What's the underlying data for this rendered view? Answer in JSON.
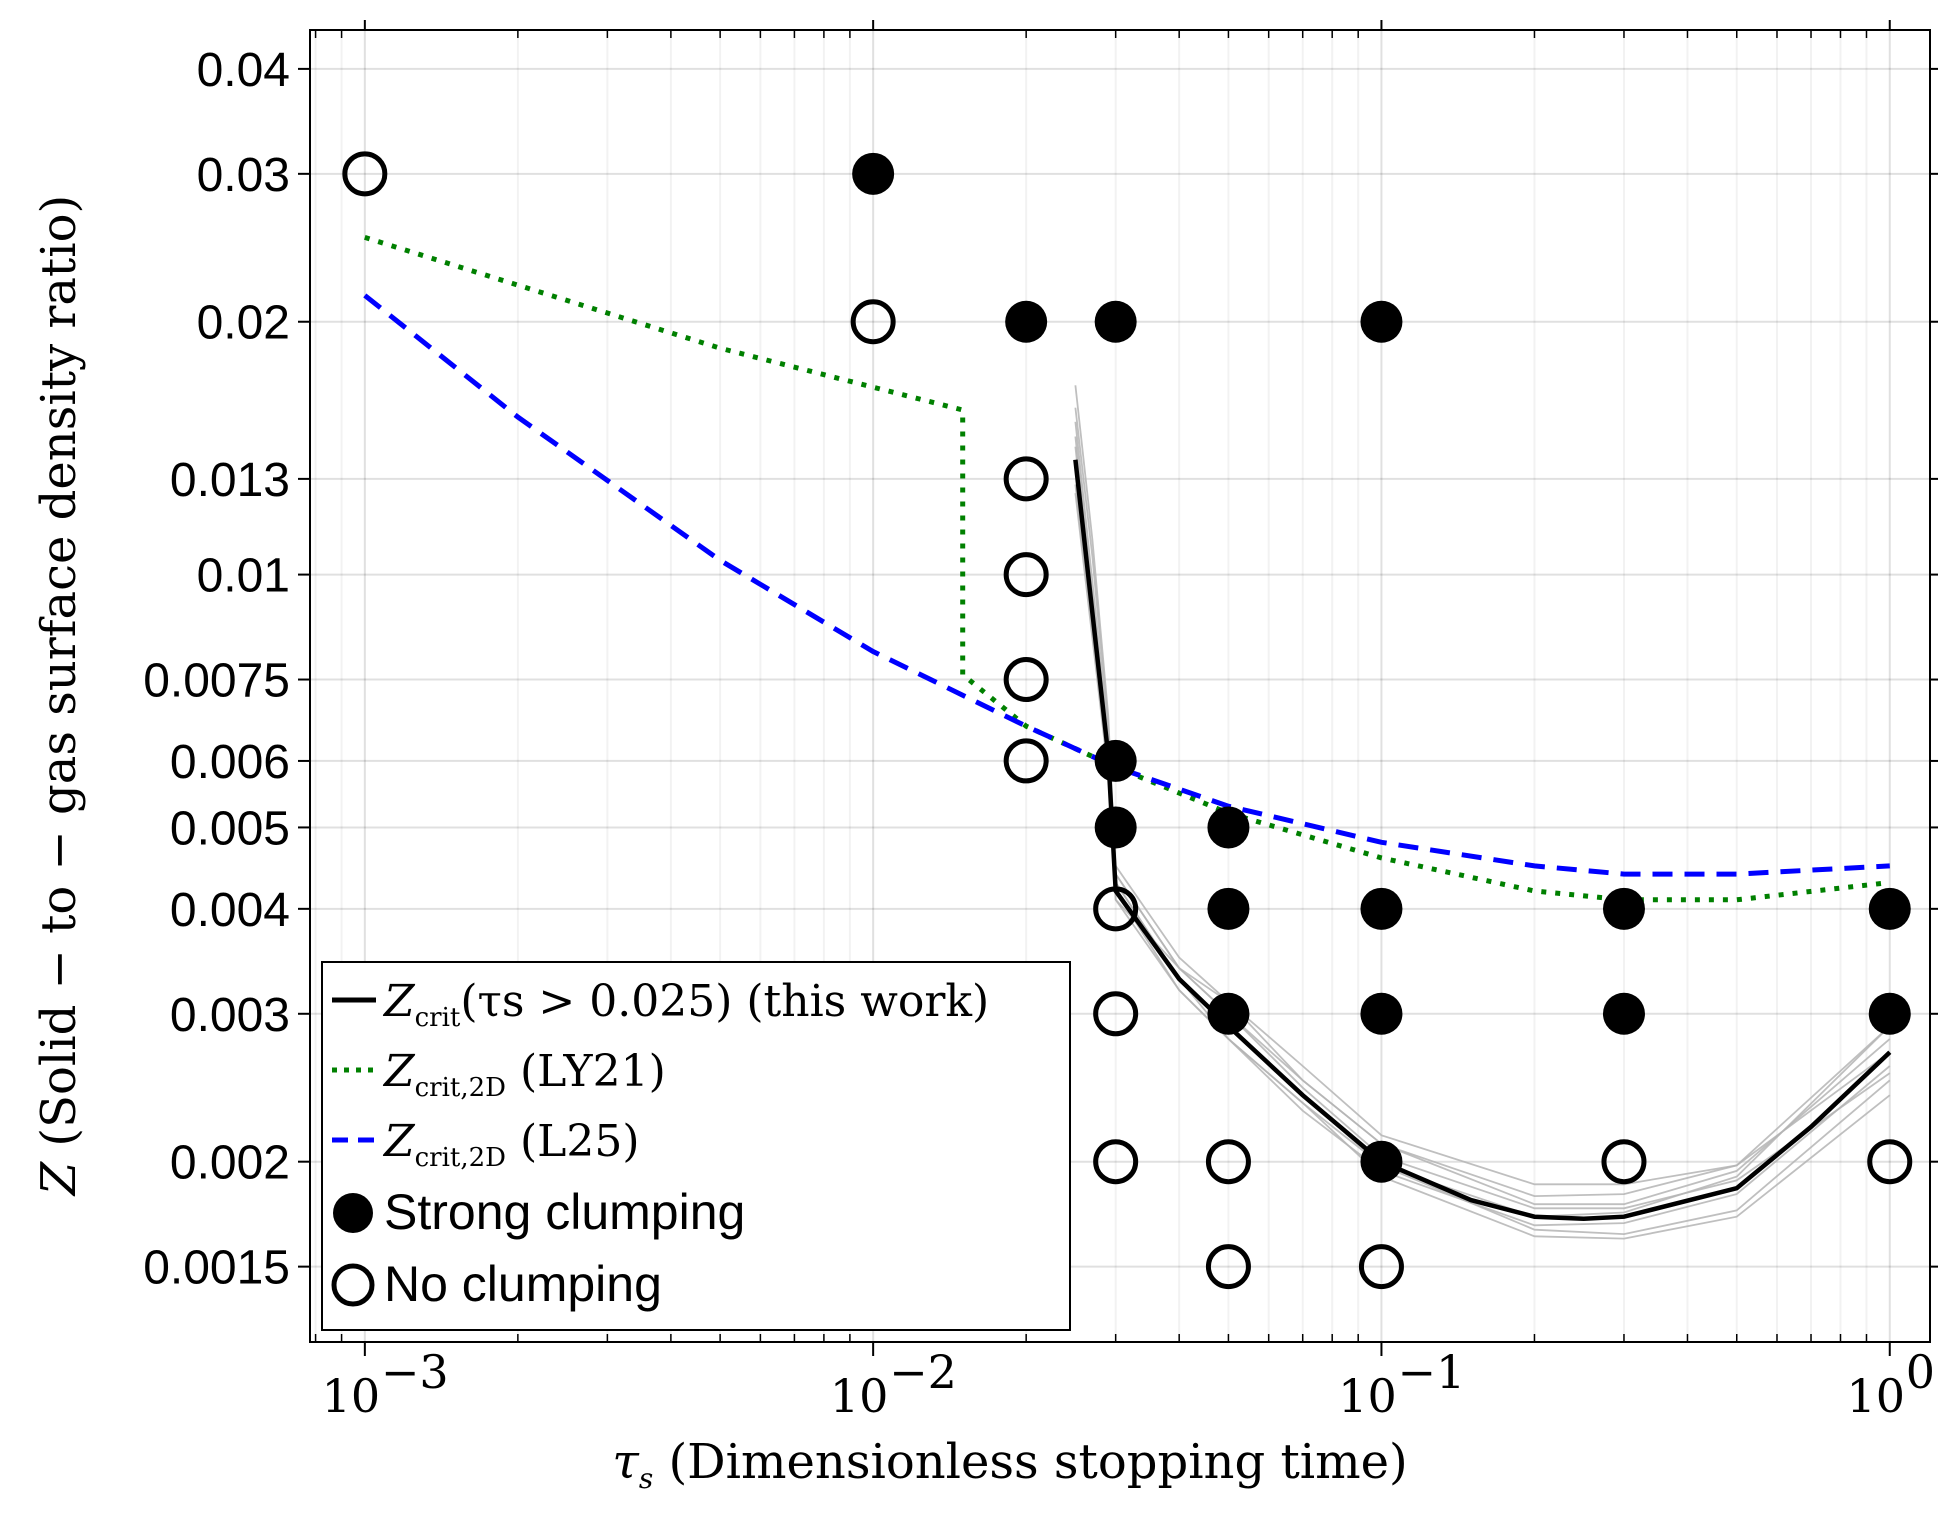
{
  "chart_data": {
    "type": "scatter",
    "xscale": "log",
    "yscale": "log",
    "xlim": [
      0.00078,
      1.2
    ],
    "ylim": [
      0.00122,
      0.0445
    ],
    "xlabel": "τ_s (Dimensionless stopping time)",
    "ylabel": "Z (Solid − to − gas surface density ratio)",
    "x_ticks": [
      0.001,
      0.01,
      0.1,
      1
    ],
    "x_tick_labels": [
      "10",
      "10",
      "10",
      "10"
    ],
    "x_tick_exponents": [
      "−3",
      "−2",
      "−1",
      "0"
    ],
    "y_ticks": [
      0.0015,
      0.002,
      0.003,
      0.004,
      0.005,
      0.006,
      0.0075,
      0.01,
      0.013,
      0.02,
      0.03,
      0.04
    ],
    "y_tick_labels": [
      "0.0015",
      "0.002",
      "0.003",
      "0.004",
      "0.005",
      "0.006",
      "0.0075",
      "0.01",
      "0.013",
      "0.02",
      "0.03",
      "0.04"
    ],
    "grid": true,
    "series": [
      {
        "name": "Strong clumping",
        "kind": "marker-filled",
        "color": "#000000",
        "points": [
          [
            0.01,
            0.03
          ],
          [
            0.02,
            0.02
          ],
          [
            0.03,
            0.02
          ],
          [
            0.1,
            0.02
          ],
          [
            0.03,
            0.006
          ],
          [
            0.03,
            0.005
          ],
          [
            0.05,
            0.005
          ],
          [
            0.05,
            0.004
          ],
          [
            0.1,
            0.004
          ],
          [
            0.3,
            0.004
          ],
          [
            1.0,
            0.004
          ],
          [
            0.05,
            0.003
          ],
          [
            0.1,
            0.003
          ],
          [
            0.3,
            0.003
          ],
          [
            1.0,
            0.003
          ],
          [
            0.1,
            0.002
          ]
        ]
      },
      {
        "name": "No clumping",
        "kind": "marker-open",
        "color": "#000000",
        "points": [
          [
            0.001,
            0.03
          ],
          [
            0.01,
            0.02
          ],
          [
            0.02,
            0.013
          ],
          [
            0.02,
            0.01
          ],
          [
            0.02,
            0.0075
          ],
          [
            0.02,
            0.006
          ],
          [
            0.03,
            0.004
          ],
          [
            0.03,
            0.003
          ],
          [
            0.03,
            0.002
          ],
          [
            0.05,
            0.002
          ],
          [
            0.3,
            0.002
          ],
          [
            1.0,
            0.002
          ],
          [
            0.05,
            0.0015
          ],
          [
            0.1,
            0.0015
          ]
        ]
      },
      {
        "name": "Z_crit,2D (LY21)",
        "kind": "line-dotted",
        "color": "#008000",
        "points": [
          [
            0.001,
            0.0252
          ],
          [
            0.005,
            0.0186
          ],
          [
            0.015,
            0.0157
          ],
          [
            0.015,
            0.0076
          ],
          [
            0.02,
            0.0066
          ],
          [
            0.03,
            0.0059
          ],
          [
            0.05,
            0.0052
          ],
          [
            0.1,
            0.0046
          ],
          [
            0.2,
            0.0042
          ],
          [
            0.3,
            0.0041
          ],
          [
            0.5,
            0.0041
          ],
          [
            1.0,
            0.0043
          ]
        ]
      },
      {
        "name": "Z_crit,2D (L25)",
        "kind": "line-dashed",
        "color": "#0000ff",
        "points": [
          [
            0.001,
            0.0215
          ],
          [
            0.002,
            0.0154
          ],
          [
            0.005,
            0.0104
          ],
          [
            0.01,
            0.0081
          ],
          [
            0.02,
            0.0066
          ],
          [
            0.03,
            0.0059
          ],
          [
            0.05,
            0.0053
          ],
          [
            0.1,
            0.0048
          ],
          [
            0.2,
            0.0045
          ],
          [
            0.3,
            0.0044
          ],
          [
            0.5,
            0.0044
          ],
          [
            1.0,
            0.0045
          ]
        ]
      },
      {
        "name": "Z_crit(τ_s > 0.025) (this work)",
        "kind": "line-solid",
        "color": "#000000",
        "points": [
          [
            0.025,
            0.0137
          ],
          [
            0.027,
            0.009
          ],
          [
            0.029,
            0.0061
          ],
          [
            0.03,
            0.0042
          ],
          [
            0.04,
            0.0033
          ],
          [
            0.05,
            0.0029
          ],
          [
            0.07,
            0.0024
          ],
          [
            0.1,
            0.002
          ],
          [
            0.15,
            0.0018
          ],
          [
            0.2,
            0.00172
          ],
          [
            0.25,
            0.00171
          ],
          [
            0.3,
            0.00172
          ],
          [
            0.5,
            0.00186
          ],
          [
            0.7,
            0.0022
          ],
          [
            1.0,
            0.0027
          ]
        ]
      },
      {
        "name": "bootstrap realizations",
        "kind": "line-thin",
        "color": "#b4b4b4",
        "lines": [
          [
            [
              0.025,
              0.0168
            ],
            [
              0.027,
              0.011
            ],
            [
              0.029,
              0.0068
            ],
            [
              0.03,
              0.0044
            ],
            [
              0.04,
              0.0034
            ],
            [
              0.05,
              0.003
            ],
            [
              0.07,
              0.0025
            ],
            [
              0.1,
              0.0021
            ],
            [
              0.2,
              0.00182
            ],
            [
              0.3,
              0.00183
            ],
            [
              0.5,
              0.00198
            ],
            [
              1.0,
              0.0029
            ]
          ],
          [
            [
              0.025,
              0.0158
            ],
            [
              0.027,
              0.0105
            ],
            [
              0.029,
              0.0066
            ],
            [
              0.03,
              0.0043
            ],
            [
              0.04,
              0.0033
            ],
            [
              0.05,
              0.0029
            ],
            [
              0.07,
              0.0024
            ],
            [
              0.1,
              0.00198
            ],
            [
              0.2,
              0.00166
            ],
            [
              0.3,
              0.00164
            ],
            [
              0.5,
              0.00175
            ],
            [
              1.0,
              0.0025
            ]
          ],
          [
            [
              0.025,
              0.0152
            ],
            [
              0.027,
              0.0098
            ],
            [
              0.029,
              0.0064
            ],
            [
              0.03,
              0.0042
            ],
            [
              0.04,
              0.0032
            ],
            [
              0.05,
              0.0028
            ],
            [
              0.07,
              0.0023
            ],
            [
              0.1,
              0.00195
            ],
            [
              0.2,
              0.00168
            ],
            [
              0.3,
              0.00169
            ],
            [
              0.5,
              0.00183
            ],
            [
              1.0,
              0.0026
            ]
          ],
          [
            [
              0.025,
              0.0146
            ],
            [
              0.027,
              0.0094
            ],
            [
              0.029,
              0.0062
            ],
            [
              0.03,
              0.0041
            ],
            [
              0.04,
              0.0034
            ],
            [
              0.05,
              0.0031
            ],
            [
              0.07,
              0.0026
            ],
            [
              0.1,
              0.00215
            ],
            [
              0.2,
              0.00188
            ],
            [
              0.3,
              0.00188
            ],
            [
              0.5,
              0.00198
            ],
            [
              1.0,
              0.0027
            ]
          ],
          [
            [
              0.025,
              0.0142
            ],
            [
              0.027,
              0.0092
            ],
            [
              0.029,
              0.0061
            ],
            [
              0.03,
              0.0043
            ],
            [
              0.04,
              0.0033
            ],
            [
              0.05,
              0.0028
            ],
            [
              0.07,
              0.00235
            ],
            [
              0.1,
              0.00192
            ],
            [
              0.2,
              0.00163
            ],
            [
              0.3,
              0.00162
            ],
            [
              0.5,
              0.00172
            ],
            [
              1.0,
              0.0024
            ]
          ],
          [
            [
              0.025,
              0.0135
            ],
            [
              0.027,
              0.009
            ],
            [
              0.029,
              0.006
            ],
            [
              0.03,
              0.0045
            ],
            [
              0.04,
              0.0035
            ],
            [
              0.05,
              0.0031
            ],
            [
              0.07,
              0.0025
            ],
            [
              0.1,
              0.0021
            ],
            [
              0.2,
              0.00178
            ],
            [
              0.3,
              0.00178
            ],
            [
              0.5,
              0.00195
            ],
            [
              1.0,
              0.0028
            ]
          ],
          [
            [
              0.025,
              0.0128
            ],
            [
              0.027,
              0.0086
            ],
            [
              0.029,
              0.0059
            ],
            [
              0.03,
              0.0041
            ],
            [
              0.04,
              0.0032
            ],
            [
              0.05,
              0.0028
            ],
            [
              0.07,
              0.00235
            ],
            [
              0.1,
              0.00198
            ],
            [
              0.2,
              0.00172
            ],
            [
              0.3,
              0.00174
            ],
            [
              0.5,
              0.00192
            ],
            [
              1.0,
              0.0029
            ]
          ],
          [
            [
              0.025,
              0.0125
            ],
            [
              0.027,
              0.0084
            ],
            [
              0.029,
              0.0058
            ],
            [
              0.03,
              0.0044
            ],
            [
              0.04,
              0.0034
            ],
            [
              0.05,
              0.003
            ],
            [
              0.07,
              0.00245
            ],
            [
              0.1,
              0.00203
            ],
            [
              0.2,
              0.00176
            ],
            [
              0.3,
              0.00176
            ],
            [
              0.5,
              0.0019
            ],
            [
              1.0,
              0.00255
            ]
          ]
        ]
      }
    ],
    "legend": {
      "placement": "bottom-left",
      "entries": [
        {
          "kind": "line-solid",
          "color": "#000000",
          "label": "Z_crit(τ_s > 0.025) (this work)"
        },
        {
          "kind": "line-dotted",
          "color": "#008000",
          "label": "Z_crit,2D (LY21)"
        },
        {
          "kind": "line-dashed",
          "color": "#0000ff",
          "label": "Z_crit,2D (L25)"
        },
        {
          "kind": "marker-filled",
          "color": "#000000",
          "label": "Strong clumping"
        },
        {
          "kind": "marker-open",
          "color": "#000000",
          "label": "No clumping"
        }
      ]
    }
  }
}
